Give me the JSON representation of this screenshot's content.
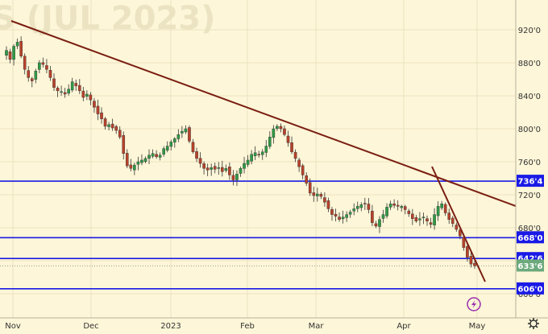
{
  "chart_data": {
    "type": "candlestick",
    "title": "S (JUL 2023)",
    "y_ticks": [
      "920'0",
      "880'0",
      "840'0",
      "800'0",
      "760'0",
      "720'0",
      "680'0",
      "640'0",
      "600'0"
    ],
    "y_tick_values": [
      920,
      880,
      840,
      800,
      760,
      720,
      680,
      640,
      600
    ],
    "x_ticks": [
      "Nov",
      "Dec",
      "2023",
      "Feb",
      "Mar",
      "Apr",
      "May"
    ],
    "horizontal_levels": [
      {
        "label": "736'4",
        "value": 736.5
      },
      {
        "label": "668'0",
        "value": 668.0
      },
      {
        "label": "642'6",
        "value": 642.75
      },
      {
        "label": "606'0",
        "value": 606.0
      }
    ],
    "current_price": {
      "label": "633'6",
      "value": 633.75
    },
    "trendlines": [
      {
        "name": "long-term-downtrend",
        "points": [
          [
            "Nov",
            930
          ],
          [
            "May",
            705
          ]
        ]
      },
      {
        "name": "short-term-downtrend",
        "points": [
          [
            "Apr",
            748
          ],
          [
            "May",
            630
          ]
        ]
      }
    ],
    "candles_close": [
      895,
      884,
      900,
      905,
      888,
      872,
      862,
      858,
      870,
      880,
      878,
      872,
      862,
      850,
      846,
      845,
      842,
      848,
      857,
      852,
      846,
      838,
      842,
      835,
      826,
      818,
      812,
      803,
      805,
      801,
      798,
      790,
      770,
      755,
      752,
      756,
      760,
      762,
      764,
      768,
      770,
      766,
      768,
      776,
      779,
      784,
      788,
      793,
      797,
      800,
      785,
      772,
      764,
      758,
      752,
      750,
      753,
      751,
      753,
      748,
      752,
      744,
      738,
      745,
      752,
      758,
      762,
      769,
      771,
      768,
      772,
      779,
      790,
      800,
      803,
      800,
      793,
      783,
      772,
      764,
      754,
      744,
      734,
      722,
      719,
      721,
      718,
      711,
      703,
      696,
      694,
      690,
      693,
      696,
      699,
      703,
      706,
      708,
      709,
      702,
      686,
      682,
      690,
      696,
      705,
      709,
      707,
      706,
      706,
      702,
      697,
      691,
      688,
      691,
      693,
      688,
      684,
      696,
      706,
      709,
      698,
      690,
      685,
      678,
      670,
      656,
      644,
      636,
      633.75
    ],
    "bull_color": "#2e9a45",
    "bear_color": "#b8412a",
    "trendline_color": "#7a1e12",
    "level_color": "#1a1ae6",
    "current_price_color": "#6ca97c"
  },
  "watermark": "S (JUL 2023)",
  "footer": {
    "lightning_icon": "lightning-icon",
    "settings_icon": "gear-icon"
  }
}
